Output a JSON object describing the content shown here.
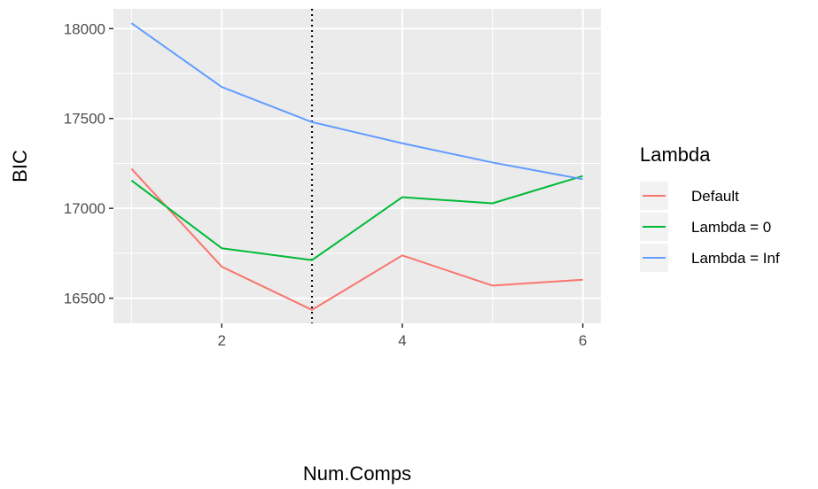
{
  "chart_data": {
    "type": "line",
    "x": [
      1,
      2,
      3,
      4,
      5,
      6
    ],
    "series": [
      {
        "name": "Default",
        "color": "#F8766D",
        "values": [
          17220,
          16675,
          16435,
          16738,
          16570,
          16603
        ]
      },
      {
        "name": "Lambda = 0",
        "color": "#00BA38",
        "values": [
          17155,
          16778,
          16712,
          17062,
          17028,
          17180
        ]
      },
      {
        "name": "Lambda = Inf",
        "color": "#619CFF",
        "values": [
          18030,
          17675,
          17480,
          17362,
          17255,
          17162
        ]
      }
    ],
    "xlabel": "Num.Comps",
    "ylabel": "BIC",
    "xlim": [
      0.8,
      6.2
    ],
    "ylim": [
      16360,
      18110
    ],
    "xticks": [
      2,
      4,
      6
    ],
    "xtick_labels": [
      "2",
      "4",
      "6"
    ],
    "yticks": [
      16500,
      17000,
      17500,
      18000
    ],
    "ytick_labels": [
      "16500",
      "17000",
      "17500",
      "18000"
    ],
    "vline_x": 3,
    "vline_style": "dotted",
    "grid": true,
    "panel_background": "#EBEBEB",
    "legend": {
      "title": "Lambda",
      "placement": "right"
    }
  }
}
